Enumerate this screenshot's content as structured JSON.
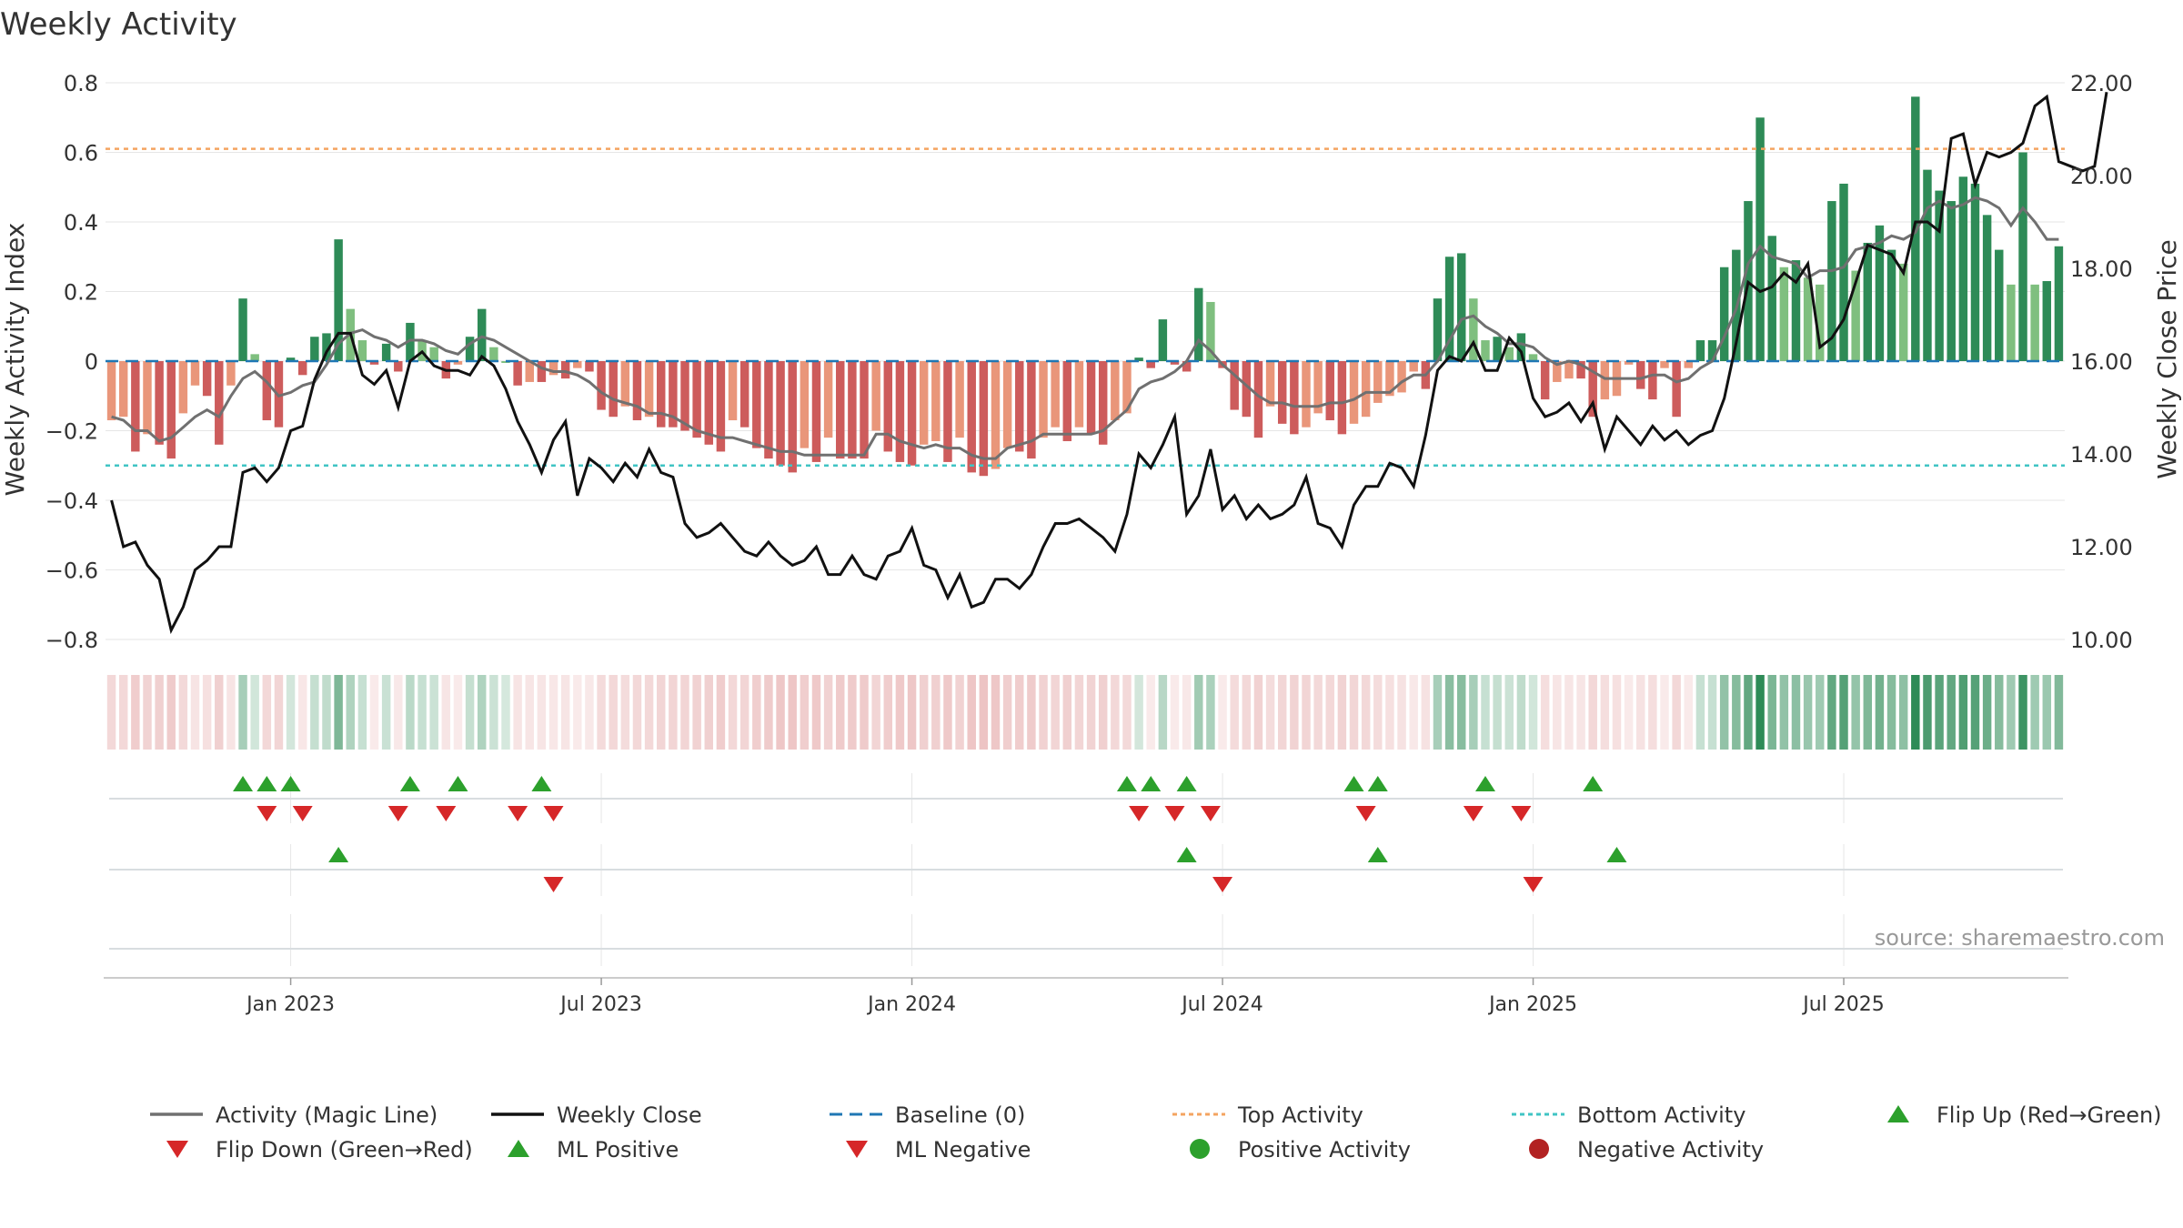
{
  "title": "Weekly Activity",
  "source": "source: sharemaestro.com",
  "colors": {
    "strong_green": "#2e8b57",
    "light_green": "#7fbf7f",
    "strong_red": "#cd5c5c",
    "light_red": "#e9967a",
    "magic_line": "#707070",
    "close_line": "#111111",
    "baseline": "#1f77b4",
    "top_line": "#f4a460",
    "bottom_line": "#40c4c4",
    "marker_up": "#2ca02c",
    "marker_down": "#d62728",
    "pos_dot": "#2ca02c",
    "neg_dot": "#b22222",
    "grid": "#e6e6e6"
  },
  "chart_data": {
    "type": "bar+line",
    "title": "Weekly Activity",
    "ylabel_left": "Weekly Activity Index",
    "ylabel_right": "Weekly Close Price",
    "ylim_left": [
      -0.8,
      0.8
    ],
    "ylim_right": [
      10,
      22
    ],
    "yticks_left": [
      "0.8",
      "0.6",
      "0.4",
      "0.2",
      "0",
      "−0.2",
      "−0.4",
      "−0.6",
      "−0.8"
    ],
    "yticks_left_values": [
      0.8,
      0.6,
      0.4,
      0.2,
      0,
      -0.2,
      -0.4,
      -0.6,
      -0.8
    ],
    "yticks_right": [
      "22.00",
      "20.00",
      "18.00",
      "16.00",
      "14.00",
      "12.00",
      "10.00"
    ],
    "yticks_right_values": [
      22,
      20,
      18,
      16,
      14,
      12,
      10
    ],
    "xticks": [
      "Jan 2023",
      "Jul 2023",
      "Jan 2024",
      "Jul 2024",
      "Jan 2025",
      "Jul 2025"
    ],
    "xticks_week_index": [
      15,
      41,
      67,
      93,
      119,
      145
    ],
    "top_activity": 0.61,
    "bottom_activity": -0.3,
    "baseline": 0,
    "weekly_activity": [
      -0.17,
      -0.16,
      -0.26,
      -0.21,
      -0.24,
      -0.28,
      -0.15,
      -0.07,
      -0.1,
      -0.24,
      -0.07,
      0.18,
      0.02,
      -0.17,
      -0.19,
      0.01,
      -0.04,
      0.07,
      0.08,
      0.35,
      0.15,
      0.06,
      -0.01,
      0.05,
      -0.03,
      0.11,
      0.06,
      0.04,
      -0.05,
      -0.01,
      0.07,
      0.15,
      0.04,
      0.0,
      -0.07,
      -0.06,
      -0.06,
      -0.04,
      -0.05,
      -0.02,
      -0.03,
      -0.14,
      -0.16,
      -0.13,
      -0.17,
      -0.16,
      -0.19,
      -0.19,
      -0.2,
      -0.22,
      -0.24,
      -0.26,
      -0.17,
      -0.19,
      -0.25,
      -0.28,
      -0.3,
      -0.32,
      -0.25,
      -0.29,
      -0.22,
      -0.28,
      -0.28,
      -0.28,
      -0.2,
      -0.26,
      -0.29,
      -0.3,
      -0.24,
      -0.23,
      -0.29,
      -0.22,
      -0.32,
      -0.33,
      -0.31,
      -0.25,
      -0.26,
      -0.28,
      -0.22,
      -0.19,
      -0.23,
      -0.19,
      -0.21,
      -0.24,
      -0.17,
      -0.15,
      0.01,
      -0.02,
      0.12,
      -0.01,
      -0.03,
      0.21,
      0.17,
      -0.02,
      -0.14,
      -0.16,
      -0.22,
      -0.13,
      -0.18,
      -0.21,
      -0.19,
      -0.15,
      -0.17,
      -0.21,
      -0.18,
      -0.16,
      -0.12,
      -0.1,
      -0.09,
      -0.03,
      -0.08,
      0.18,
      0.3,
      0.31,
      0.18,
      0.06,
      0.07,
      0.04,
      0.08,
      0.02,
      -0.11,
      -0.06,
      -0.05,
      -0.05,
      -0.16,
      -0.11,
      -0.1,
      -0.01,
      -0.08,
      -0.11,
      -0.02,
      -0.16,
      -0.02,
      0.06,
      0.06,
      0.27,
      0.32,
      0.46,
      0.7,
      0.36,
      0.27,
      0.29,
      0.24,
      0.22,
      0.46,
      0.51,
      0.26,
      0.34,
      0.39,
      0.32,
      0.28,
      0.76,
      0.55,
      0.49,
      0.46,
      0.53,
      0.51,
      0.42,
      0.32,
      0.22,
      0.6,
      0.22,
      0.23,
      0.33
    ],
    "magic_line": [
      -0.16,
      -0.17,
      -0.2,
      -0.2,
      -0.23,
      -0.22,
      -0.19,
      -0.16,
      -0.14,
      -0.16,
      -0.1,
      -0.05,
      -0.03,
      -0.06,
      -0.1,
      -0.09,
      -0.07,
      -0.06,
      -0.01,
      0.05,
      0.08,
      0.09,
      0.07,
      0.06,
      0.04,
      0.06,
      0.06,
      0.05,
      0.03,
      0.02,
      0.05,
      0.07,
      0.06,
      0.04,
      0.02,
      0.0,
      -0.02,
      -0.03,
      -0.03,
      -0.04,
      -0.06,
      -0.09,
      -0.11,
      -0.12,
      -0.13,
      -0.15,
      -0.15,
      -0.16,
      -0.18,
      -0.2,
      -0.21,
      -0.22,
      -0.22,
      -0.23,
      -0.24,
      -0.25,
      -0.26,
      -0.26,
      -0.27,
      -0.27,
      -0.27,
      -0.27,
      -0.27,
      -0.27,
      -0.21,
      -0.21,
      -0.23,
      -0.24,
      -0.25,
      -0.24,
      -0.25,
      -0.25,
      -0.27,
      -0.28,
      -0.28,
      -0.25,
      -0.24,
      -0.23,
      -0.21,
      -0.21,
      -0.21,
      -0.21,
      -0.21,
      -0.2,
      -0.17,
      -0.14,
      -0.08,
      -0.06,
      -0.05,
      -0.03,
      0.0,
      0.06,
      0.03,
      -0.01,
      -0.04,
      -0.07,
      -0.1,
      -0.12,
      -0.12,
      -0.13,
      -0.13,
      -0.13,
      -0.12,
      -0.12,
      -0.11,
      -0.09,
      -0.09,
      -0.09,
      -0.06,
      -0.04,
      -0.04,
      0.0,
      0.06,
      0.12,
      0.13,
      0.1,
      0.08,
      0.05,
      0.05,
      0.04,
      0.01,
      -0.01,
      0.0,
      -0.01,
      -0.03,
      -0.05,
      -0.05,
      -0.05,
      -0.05,
      -0.04,
      -0.04,
      -0.06,
      -0.05,
      -0.02,
      0.0,
      0.07,
      0.15,
      0.28,
      0.33,
      0.3,
      0.29,
      0.28,
      0.24,
      0.26,
      0.26,
      0.27,
      0.32,
      0.33,
      0.34,
      0.36,
      0.35,
      0.37,
      0.44,
      0.46,
      0.44,
      0.45,
      0.47,
      0.46,
      0.44,
      0.39,
      0.44,
      0.4,
      0.35,
      0.35
    ],
    "weekly_close": [
      13.0,
      12.0,
      12.1,
      11.6,
      11.3,
      10.2,
      10.7,
      11.5,
      11.7,
      12.0,
      12.0,
      13.6,
      13.7,
      13.4,
      13.7,
      14.5,
      14.6,
      15.6,
      16.2,
      16.6,
      16.6,
      15.7,
      15.5,
      15.8,
      15.0,
      16.0,
      16.2,
      15.9,
      15.8,
      15.8,
      15.7,
      16.1,
      15.9,
      15.4,
      14.7,
      14.2,
      13.6,
      14.3,
      14.7,
      13.1,
      13.9,
      13.7,
      13.4,
      13.8,
      13.5,
      14.1,
      13.6,
      13.5,
      12.5,
      12.2,
      12.3,
      12.5,
      12.2,
      11.9,
      11.8,
      12.1,
      11.8,
      11.6,
      11.7,
      12.0,
      11.4,
      11.4,
      11.8,
      11.4,
      11.3,
      11.8,
      11.9,
      12.4,
      11.6,
      11.5,
      10.9,
      11.4,
      10.7,
      10.8,
      11.3,
      11.3,
      11.1,
      11.4,
      12.0,
      12.5,
      12.5,
      12.6,
      12.4,
      12.2,
      11.9,
      12.7,
      14.0,
      13.7,
      14.2,
      14.8,
      12.7,
      13.1,
      14.1,
      12.8,
      13.1,
      12.6,
      12.9,
      12.6,
      12.7,
      12.9,
      13.5,
      12.5,
      12.4,
      12.0,
      12.9,
      13.3,
      13.3,
      13.8,
      13.7,
      13.3,
      14.4,
      15.8,
      16.1,
      16.0,
      16.4,
      15.8,
      15.8,
      16.5,
      16.2,
      15.2,
      14.8,
      14.9,
      15.1,
      14.7,
      15.1,
      14.1,
      14.8,
      14.5,
      14.2,
      14.6,
      14.3,
      14.5,
      14.2,
      14.4,
      14.5,
      15.2,
      16.4,
      17.7,
      17.5,
      17.6,
      17.9,
      17.7,
      18.1,
      16.3,
      16.5,
      16.9,
      17.7,
      18.5,
      18.4,
      18.3,
      17.9,
      19.0,
      19.0,
      18.8,
      20.8,
      20.9,
      19.8,
      20.5,
      20.4,
      20.5,
      20.7,
      21.5,
      21.7,
      20.3,
      20.2,
      20.1,
      20.2,
      21.8
    ],
    "heat_strip_note": "one cell per week, shade = activity",
    "events": {
      "flip_up_weeks": [
        11,
        13,
        15,
        25,
        29,
        36,
        85,
        87,
        90,
        104,
        106,
        115,
        124
      ],
      "flip_down_weeks": [
        13,
        16,
        24,
        28,
        34,
        37,
        86,
        89,
        92,
        105,
        114,
        118
      ],
      "ml_positive_weeks": [
        19,
        90,
        106,
        126
      ],
      "ml_negative_weeks": [
        37,
        93,
        119
      ]
    }
  },
  "legend": [
    {
      "label": "Activity (Magic Line)",
      "kind": "line",
      "color": "#707070"
    },
    {
      "label": "Weekly Close",
      "kind": "line",
      "color": "#111111"
    },
    {
      "label": "Baseline (0)",
      "kind": "dash",
      "color": "#1f77b4"
    },
    {
      "label": "Top Activity",
      "kind": "dot",
      "color": "#f4a460"
    },
    {
      "label": "Bottom Activity",
      "kind": "dot",
      "color": "#40c4c4"
    },
    {
      "label": "Flip Up (Red→Green)",
      "kind": "tri-up",
      "color": "#2ca02c"
    },
    {
      "label": "Flip Down (Green→Red)",
      "kind": "tri-down",
      "color": "#d62728"
    },
    {
      "label": "ML Positive",
      "kind": "tri-up",
      "color": "#2ca02c"
    },
    {
      "label": "ML Negative",
      "kind": "tri-down",
      "color": "#d62728"
    },
    {
      "label": "Positive Activity",
      "kind": "circle",
      "color": "#2ca02c"
    },
    {
      "label": "Negative Activity",
      "kind": "circle",
      "color": "#b22222"
    }
  ]
}
